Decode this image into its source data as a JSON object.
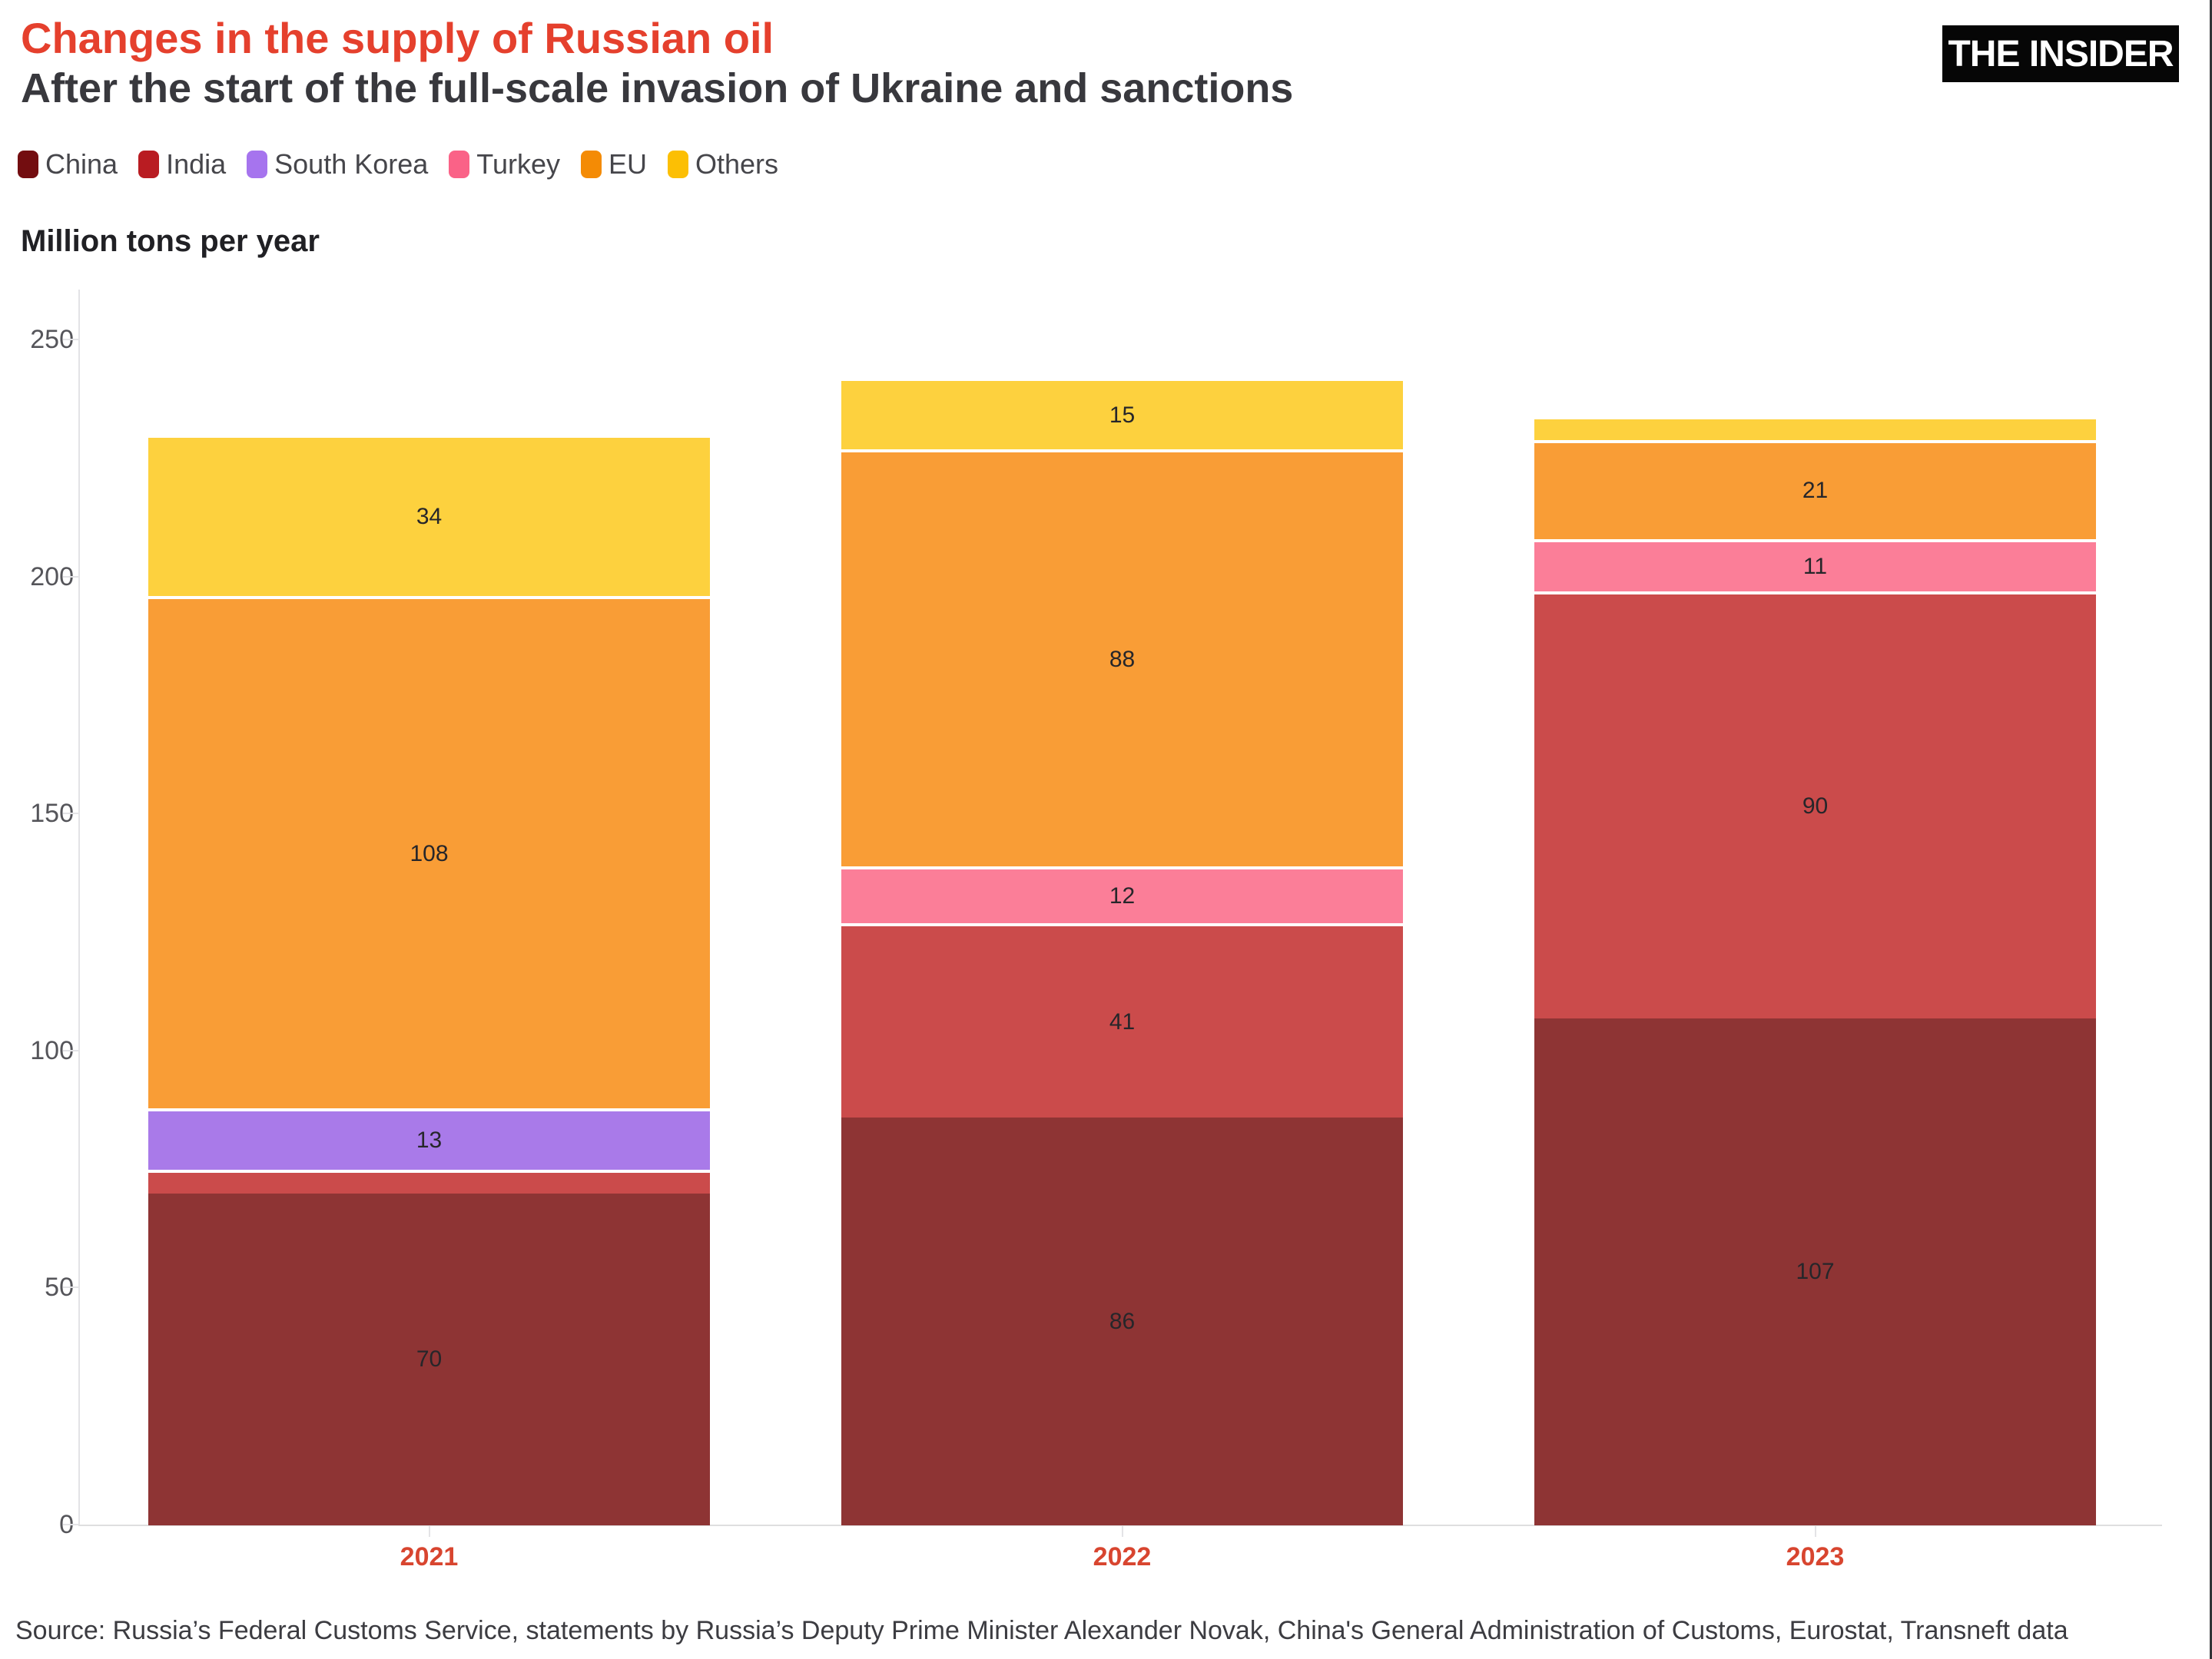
{
  "header": {
    "title": "Changes in the supply of Russian oil",
    "subtitle": "After the start of the full-scale invasion of Ukraine and sanctions",
    "logo_text": "THE INSIDER"
  },
  "axis_title": "Million tons per year",
  "chart_data": {
    "type": "bar",
    "stacked": true,
    "title": "Changes in the supply of Russian oil",
    "subtitle": "After the start of the full-scale invasion of Ukraine and sanctions",
    "unit_label": "Million tons per year",
    "categories": [
      "2021",
      "2022",
      "2023"
    ],
    "ylim": [
      0,
      250
    ],
    "y_ticks": [
      "0",
      "50",
      "100",
      "150",
      "200",
      "250"
    ],
    "grid": false,
    "legend_position": "top",
    "series": [
      {
        "name": "China",
        "bar_color": "#8e3434",
        "legend_color": "#730d10",
        "values": [
          70,
          86,
          107
        ],
        "labels": [
          "70",
          "86",
          "107"
        ]
      },
      {
        "name": "India",
        "bar_color": "#cb4b4b",
        "legend_color": "#b91c22",
        "values": [
          5,
          41,
          90
        ],
        "labels": [
          "",
          "41",
          "90"
        ]
      },
      {
        "name": "South Korea",
        "bar_color": "#a97ae9",
        "legend_color": "#a674ee",
        "values": [
          13,
          0,
          0
        ],
        "labels": [
          "13",
          "",
          ""
        ]
      },
      {
        "name": "Turkey",
        "bar_color": "#fb7e98",
        "legend_color": "#fa6287",
        "values": [
          0,
          12,
          11
        ],
        "labels": [
          "",
          "12",
          "11"
        ]
      },
      {
        "name": "EU",
        "bar_color": "#f99d36",
        "legend_color": "#f48b05",
        "values": [
          108,
          88,
          21
        ],
        "labels": [
          "108",
          "88",
          "21"
        ]
      },
      {
        "name": "Others",
        "bar_color": "#fdd13e",
        "legend_color": "#fcbf04",
        "values": [
          34,
          15,
          5
        ],
        "labels": [
          "34",
          "15",
          ""
        ]
      }
    ]
  },
  "footer": {
    "source": "Source: Russia’s Federal Customs Service, statements by Russia’s Deputy Prime Minister Alexander Novak, China's General Administration of Customs, Eurostat, Transneft data"
  },
  "colors": {
    "title": "#e5402d",
    "subtitle": "#38383d",
    "year_label": "#d8452f",
    "axis_line": "#e3e3e6",
    "tick_text": "#55555a",
    "segment_label": "#26262a",
    "divider": "#ffffff"
  }
}
